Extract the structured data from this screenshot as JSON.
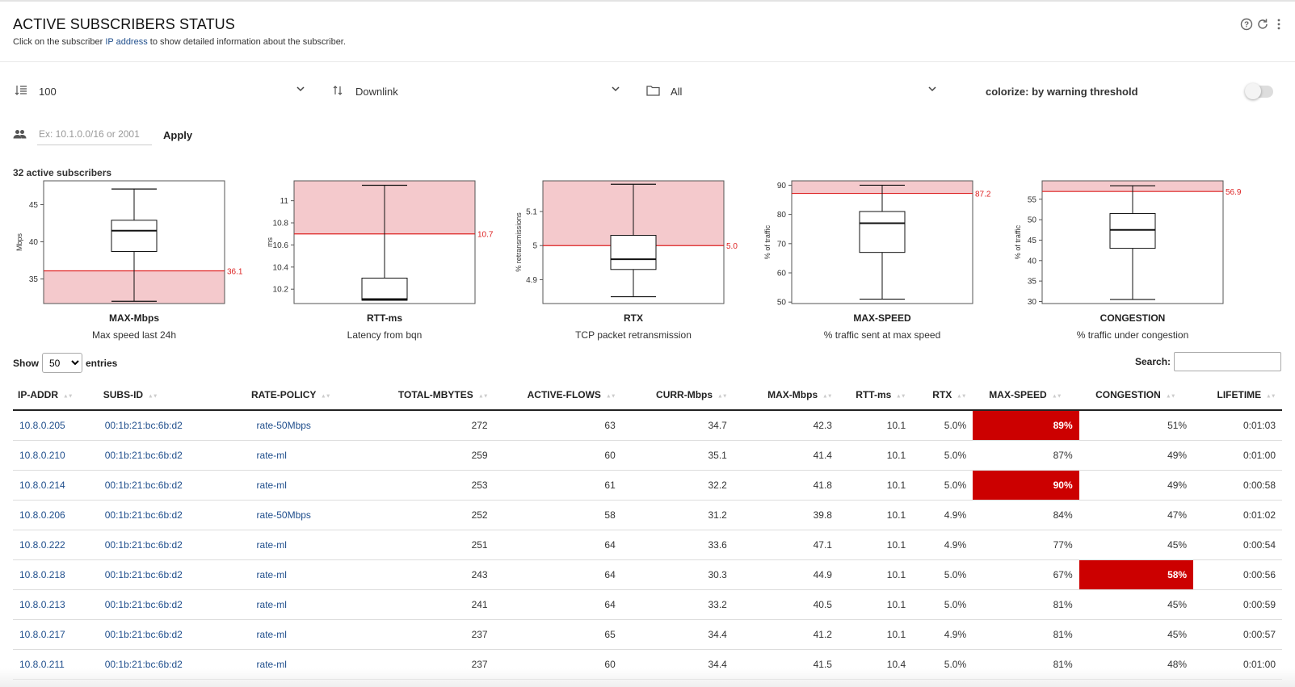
{
  "header": {
    "title": "ACTIVE SUBSCRIBERS STATUS",
    "subtitle_pre": "Click on the subscriber ",
    "subtitle_link": "IP address",
    "subtitle_post": " to show detailed information about the subscriber.",
    "icons": [
      "help-icon",
      "refresh-icon",
      "more-vert-icon"
    ]
  },
  "controls": {
    "limit": "100",
    "direction": "Downlink",
    "folder": "All",
    "colorize_label": "colorize: by warning threshold",
    "colorize_on": false,
    "filter_placeholder": "Ex: 10.1.0.0/16 or 2001",
    "apply_label": "Apply",
    "active_count": "32 active subscribers"
  },
  "chart_data": [
    {
      "type": "box",
      "title": "MAX-Mbps",
      "subtitle": "Max speed last 24h",
      "ylabel": "Mbps",
      "ylim": [
        31.7,
        48.2
      ],
      "ticks": [
        35,
        40,
        45
      ],
      "tick_labels": [
        "35",
        "40",
        "45"
      ],
      "min": 32.0,
      "q1": 38.7,
      "median": 41.5,
      "q3": 42.9,
      "max": 47.1,
      "threshold": 36.1,
      "threshold_label": "36.1",
      "shade": "below"
    },
    {
      "type": "box",
      "title": "RTT-ms",
      "subtitle": "Latency from bqn",
      "ylabel": "ms",
      "ylim": [
        10.07,
        11.18
      ],
      "ticks": [
        10.2,
        10.4,
        10.6,
        10.8,
        11
      ],
      "tick_labels": [
        "10.2",
        "10.4",
        "10.6",
        "10.8",
        "11"
      ],
      "min": 10.1,
      "q1": 10.1,
      "median": 10.11,
      "q3": 10.3,
      "max": 11.14,
      "threshold": 10.7,
      "threshold_label": "10.7",
      "shade": "above"
    },
    {
      "type": "box",
      "title": "RTX",
      "subtitle": "TCP packet retransmission",
      "ylabel": "% retransmissions",
      "ylim": [
        4.83,
        5.19
      ],
      "ticks": [
        4.9,
        5,
        5.1
      ],
      "tick_labels": [
        "4.9",
        "5",
        "5.1"
      ],
      "min": 4.85,
      "q1": 4.93,
      "median": 4.96,
      "q3": 5.03,
      "max": 5.18,
      "threshold": 5.0,
      "threshold_label": "5.0",
      "shade": "above"
    },
    {
      "type": "box",
      "title": "MAX-SPEED",
      "subtitle": "% traffic sent at max speed",
      "ylabel": "% of traffic",
      "ylim": [
        49.5,
        91.5
      ],
      "ticks": [
        50,
        60,
        70,
        80,
        90
      ],
      "tick_labels": [
        "50",
        "60",
        "70",
        "80",
        "90"
      ],
      "min": 51,
      "q1": 67,
      "median": 77,
      "q3": 81,
      "max": 90,
      "threshold": 87.2,
      "threshold_label": "87.2",
      "shade": "above"
    },
    {
      "type": "box",
      "title": "CONGESTION",
      "subtitle": "% traffic under congestion",
      "ylabel": "% of traffic",
      "ylim": [
        29.5,
        59.5
      ],
      "ticks": [
        30,
        35,
        40,
        45,
        50,
        55
      ],
      "tick_labels": [
        "30",
        "35",
        "40",
        "45",
        "50",
        "55"
      ],
      "min": 30.5,
      "q1": 43,
      "median": 47.5,
      "q3": 51.5,
      "max": 58.3,
      "threshold": 56.9,
      "threshold_label": "56.9",
      "shade": "above"
    }
  ],
  "table": {
    "show_label": "Show",
    "entries_label": "entries",
    "page_size": "50",
    "search_label": "Search:",
    "columns": [
      "IP-ADDR",
      "SUBS-ID",
      "RATE-POLICY",
      "TOTAL-MBYTES",
      "ACTIVE-FLOWS",
      "CURR-Mbps",
      "MAX-Mbps",
      "RTT-ms",
      "RTX",
      "MAX-SPEED",
      "CONGESTION",
      "LIFETIME"
    ],
    "rows": [
      [
        "10.8.0.205",
        "00:1b:21:bc:6b:d2",
        "rate-50Mbps",
        "272",
        "63",
        "34.7",
        "42.3",
        "10.1",
        "5.0%",
        "89%",
        "51%",
        "0:01:03"
      ],
      [
        "10.8.0.210",
        "00:1b:21:bc:6b:d2",
        "rate-ml",
        "259",
        "60",
        "35.1",
        "41.4",
        "10.1",
        "5.0%",
        "87%",
        "49%",
        "0:01:00"
      ],
      [
        "10.8.0.214",
        "00:1b:21:bc:6b:d2",
        "rate-ml",
        "253",
        "61",
        "32.2",
        "41.8",
        "10.1",
        "5.0%",
        "90%",
        "49%",
        "0:00:58"
      ],
      [
        "10.8.0.206",
        "00:1b:21:bc:6b:d2",
        "rate-50Mbps",
        "252",
        "58",
        "31.2",
        "39.8",
        "10.1",
        "4.9%",
        "84%",
        "47%",
        "0:01:02"
      ],
      [
        "10.8.0.222",
        "00:1b:21:bc:6b:d2",
        "rate-ml",
        "251",
        "64",
        "33.6",
        "47.1",
        "10.1",
        "4.9%",
        "77%",
        "45%",
        "0:00:54"
      ],
      [
        "10.8.0.218",
        "00:1b:21:bc:6b:d2",
        "rate-ml",
        "243",
        "64",
        "30.3",
        "44.9",
        "10.1",
        "5.0%",
        "67%",
        "58%",
        "0:00:56"
      ],
      [
        "10.8.0.213",
        "00:1b:21:bc:6b:d2",
        "rate-ml",
        "241",
        "64",
        "33.2",
        "40.5",
        "10.1",
        "5.0%",
        "81%",
        "45%",
        "0:00:59"
      ],
      [
        "10.8.0.217",
        "00:1b:21:bc:6b:d2",
        "rate-ml",
        "237",
        "65",
        "34.4",
        "41.2",
        "10.1",
        "4.9%",
        "81%",
        "45%",
        "0:00:57"
      ],
      [
        "10.8.0.211",
        "00:1b:21:bc:6b:d2",
        "rate-ml",
        "237",
        "60",
        "34.4",
        "41.5",
        "10.4",
        "5.0%",
        "81%",
        "48%",
        "0:01:00"
      ]
    ],
    "highlighted": [
      [
        0,
        9
      ],
      [
        2,
        9
      ],
      [
        5,
        10
      ]
    ],
    "highlight_color": "#cc0000"
  },
  "colors": {
    "threshold_line": "#dd2222",
    "threshold_shade": "#f4c9cc",
    "link": "#1f4e8c"
  }
}
